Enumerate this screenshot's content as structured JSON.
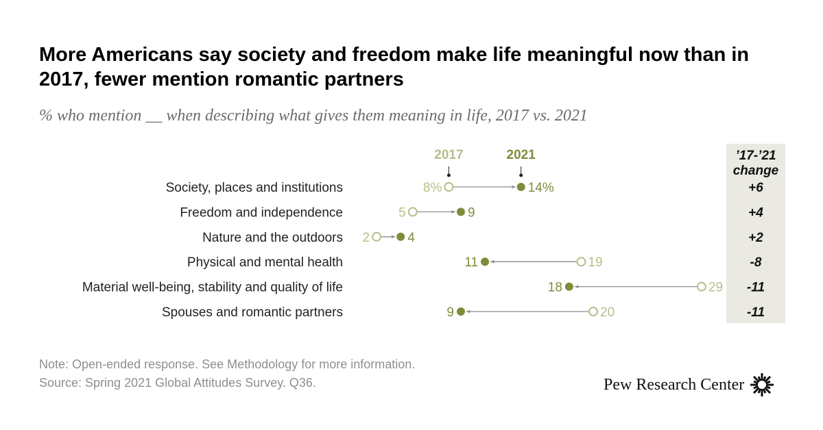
{
  "title": "More Americans say society and freedom make life meaningful now than in 2017, fewer mention romantic partners",
  "subtitle": "% who mention __ when describing what gives them meaning in life, 2017 vs. 2021",
  "change_header_line1": "’17-’21",
  "change_header_line2": "change",
  "notes": {
    "note": "Note: Open-ended response. See Methodology for more information.",
    "source": "Source: Spring 2021 Global Attitudes Survey. Q36."
  },
  "brand": {
    "name": "Pew Research Center"
  },
  "colors": {
    "y2017": "#b9bd8a",
    "y2021": "#7f8c3b",
    "arrow": "#8c8c8c",
    "change_panel": "#eae9e2"
  },
  "chart_data": {
    "type": "dumbbell",
    "title": "More Americans say society and freedom make life meaningful now than in 2017, fewer mention romantic partners",
    "subtitle": "% who mention __ when describing what gives them meaning in life, 2017 vs. 2021",
    "series_names": [
      "2017",
      "2021"
    ],
    "unit": "%",
    "xlim": [
      0,
      30
    ],
    "categories": [
      "Society, places and institutions",
      "Freedom and independence",
      "Nature and the outdoors",
      "Physical and mental health",
      "Material well-being, stability and quality of life",
      "Spouses and romantic partners"
    ],
    "y2017": [
      8,
      5,
      2,
      19,
      29,
      20
    ],
    "y2021": [
      14,
      9,
      4,
      11,
      18,
      9
    ],
    "change": [
      "+6",
      "+4",
      "+2",
      "-8",
      "-11",
      "-11"
    ]
  }
}
